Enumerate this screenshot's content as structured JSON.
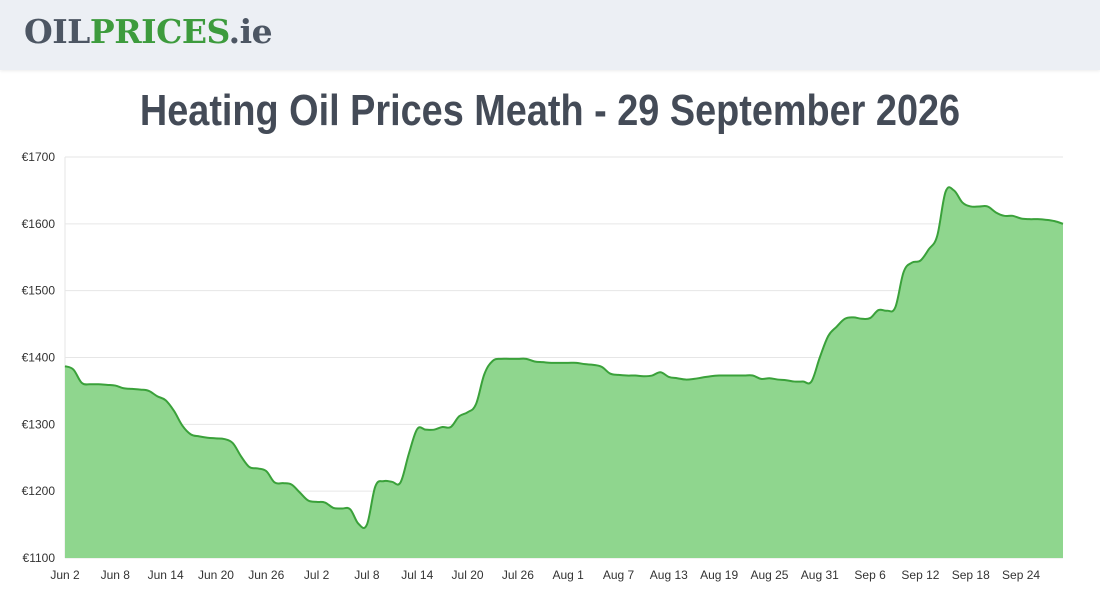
{
  "header": {
    "logo": {
      "part1": "OIL",
      "part2": "PRICES",
      "part3": ".ie"
    }
  },
  "page": {
    "title": "Heating Oil Prices Meath - 29 September 2026"
  },
  "colors": {
    "fill": "#8fd68e",
    "line": "#3aa13a",
    "grid": "#e6e6e6",
    "header_bg": "#eceff4",
    "logo_dark": "#4d5663",
    "logo_green": "#3d9b3d"
  },
  "chart_data": {
    "type": "area",
    "x_axis": {
      "type": "date",
      "start": "2026-06-02",
      "end": "2026-09-29",
      "ticks": [
        "Jun 2",
        "Jun 8",
        "Jun 14",
        "Jun 20",
        "Jun 26",
        "Jul 2",
        "Jul 8",
        "Jul 14",
        "Jul 20",
        "Jul 26",
        "Aug 1",
        "Aug 7",
        "Aug 13",
        "Aug 19",
        "Aug 25",
        "Aug 31",
        "Sep 6",
        "Sep 12",
        "Sep 18",
        "Sep 24"
      ]
    },
    "y_axis": {
      "ticks": [
        "€1100",
        "€1200",
        "€1300",
        "€1400",
        "€1500",
        "€1600",
        "€1700"
      ],
      "ylim": [
        1100,
        1700
      ]
    },
    "grid": true,
    "legend": "none",
    "series": [
      {
        "points": [
          [
            "2026-06-02",
            1387
          ],
          [
            "2026-06-03",
            1382
          ],
          [
            "2026-06-04",
            1362
          ],
          [
            "2026-06-05",
            1360
          ],
          [
            "2026-06-06",
            1360
          ],
          [
            "2026-06-07",
            1359
          ],
          [
            "2026-06-08",
            1358
          ],
          [
            "2026-06-09",
            1354
          ],
          [
            "2026-06-10",
            1353
          ],
          [
            "2026-06-11",
            1352
          ],
          [
            "2026-06-12",
            1350
          ],
          [
            "2026-06-13",
            1342
          ],
          [
            "2026-06-14",
            1336
          ],
          [
            "2026-06-15",
            1320
          ],
          [
            "2026-06-16",
            1298
          ],
          [
            "2026-06-17",
            1285
          ],
          [
            "2026-06-18",
            1282
          ],
          [
            "2026-06-19",
            1280
          ],
          [
            "2026-06-20",
            1279
          ],
          [
            "2026-06-21",
            1278
          ],
          [
            "2026-06-22",
            1272
          ],
          [
            "2026-06-23",
            1252
          ],
          [
            "2026-06-24",
            1236
          ],
          [
            "2026-06-25",
            1234
          ],
          [
            "2026-06-26",
            1230
          ],
          [
            "2026-06-27",
            1213
          ],
          [
            "2026-06-28",
            1212
          ],
          [
            "2026-06-29",
            1210
          ],
          [
            "2026-06-30",
            1198
          ],
          [
            "2026-07-01",
            1186
          ],
          [
            "2026-07-02",
            1184
          ],
          [
            "2026-07-03",
            1183
          ],
          [
            "2026-07-04",
            1175
          ],
          [
            "2026-07-05",
            1174
          ],
          [
            "2026-07-06",
            1173
          ],
          [
            "2026-07-07",
            1151
          ],
          [
            "2026-07-08",
            1150
          ],
          [
            "2026-07-09",
            1207
          ],
          [
            "2026-07-10",
            1215
          ],
          [
            "2026-07-11",
            1214
          ],
          [
            "2026-07-12",
            1213
          ],
          [
            "2026-07-13",
            1256
          ],
          [
            "2026-07-14",
            1293
          ],
          [
            "2026-07-15",
            1292
          ],
          [
            "2026-07-16",
            1292
          ],
          [
            "2026-07-17",
            1296
          ],
          [
            "2026-07-18",
            1296
          ],
          [
            "2026-07-19",
            1312
          ],
          [
            "2026-07-20",
            1318
          ],
          [
            "2026-07-21",
            1330
          ],
          [
            "2026-07-22",
            1375
          ],
          [
            "2026-07-23",
            1395
          ],
          [
            "2026-07-24",
            1398
          ],
          [
            "2026-07-25",
            1398
          ],
          [
            "2026-07-26",
            1398
          ],
          [
            "2026-07-27",
            1398
          ],
          [
            "2026-07-28",
            1394
          ],
          [
            "2026-07-29",
            1393
          ],
          [
            "2026-07-30",
            1392
          ],
          [
            "2026-07-31",
            1392
          ],
          [
            "2026-08-01",
            1392
          ],
          [
            "2026-08-02",
            1392
          ],
          [
            "2026-08-03",
            1390
          ],
          [
            "2026-08-04",
            1389
          ],
          [
            "2026-08-05",
            1386
          ],
          [
            "2026-08-06",
            1376
          ],
          [
            "2026-08-07",
            1374
          ],
          [
            "2026-08-08",
            1373
          ],
          [
            "2026-08-09",
            1373
          ],
          [
            "2026-08-10",
            1372
          ],
          [
            "2026-08-11",
            1373
          ],
          [
            "2026-08-12",
            1378
          ],
          [
            "2026-08-13",
            1371
          ],
          [
            "2026-08-14",
            1369
          ],
          [
            "2026-08-15",
            1367
          ],
          [
            "2026-08-16",
            1368
          ],
          [
            "2026-08-17",
            1370
          ],
          [
            "2026-08-18",
            1372
          ],
          [
            "2026-08-19",
            1373
          ],
          [
            "2026-08-20",
            1373
          ],
          [
            "2026-08-21",
            1373
          ],
          [
            "2026-08-22",
            1373
          ],
          [
            "2026-08-23",
            1373
          ],
          [
            "2026-08-24",
            1368
          ],
          [
            "2026-08-25",
            1369
          ],
          [
            "2026-08-26",
            1367
          ],
          [
            "2026-08-27",
            1366
          ],
          [
            "2026-08-28",
            1364
          ],
          [
            "2026-08-29",
            1364
          ],
          [
            "2026-08-30",
            1364
          ],
          [
            "2026-08-31",
            1400
          ],
          [
            "2026-09-01",
            1432
          ],
          [
            "2026-09-02",
            1446
          ],
          [
            "2026-09-03",
            1458
          ],
          [
            "2026-09-04",
            1460
          ],
          [
            "2026-09-05",
            1458
          ],
          [
            "2026-09-06",
            1459
          ],
          [
            "2026-09-07",
            1471
          ],
          [
            "2026-09-08",
            1470
          ],
          [
            "2026-09-09",
            1475
          ],
          [
            "2026-09-10",
            1528
          ],
          [
            "2026-09-11",
            1542
          ],
          [
            "2026-09-12",
            1545
          ],
          [
            "2026-09-13",
            1562
          ],
          [
            "2026-09-14",
            1582
          ],
          [
            "2026-09-15",
            1648
          ],
          [
            "2026-09-16",
            1650
          ],
          [
            "2026-09-17",
            1632
          ],
          [
            "2026-09-18",
            1626
          ],
          [
            "2026-09-19",
            1626
          ],
          [
            "2026-09-20",
            1626
          ],
          [
            "2026-09-21",
            1617
          ],
          [
            "2026-09-22",
            1612
          ],
          [
            "2026-09-23",
            1612
          ],
          [
            "2026-09-24",
            1608
          ],
          [
            "2026-09-25",
            1607
          ],
          [
            "2026-09-26",
            1607
          ],
          [
            "2026-09-27",
            1606
          ],
          [
            "2026-09-28",
            1604
          ],
          [
            "2026-09-29",
            1600
          ]
        ]
      }
    ]
  }
}
